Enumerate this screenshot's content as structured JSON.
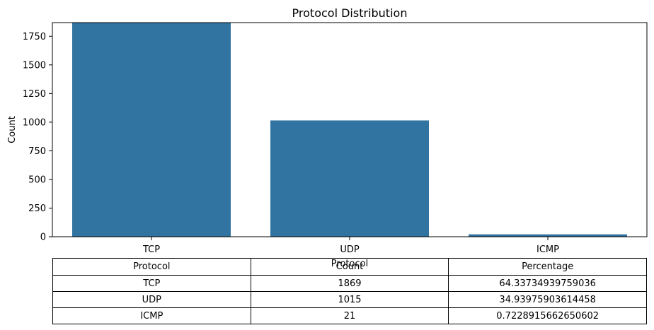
{
  "chart_data": {
    "type": "bar",
    "title": "Protocol Distribution",
    "xlabel": "Protocol",
    "ylabel": "Count",
    "categories": [
      "TCP",
      "UDP",
      "ICMP"
    ],
    "values": [
      1869,
      1015,
      21
    ],
    "ylim": [
      0,
      1869
    ],
    "yticks": [
      0,
      250,
      500,
      750,
      1000,
      1250,
      1500,
      1750
    ],
    "grid": false,
    "bar_color": "#3274a1"
  },
  "table": {
    "headers": [
      "Protocol",
      "Count",
      "Percentage"
    ],
    "rows": [
      [
        "TCP",
        "1869",
        "64.33734939759036"
      ],
      [
        "UDP",
        "1015",
        "34.93975903614458"
      ],
      [
        "ICMP",
        "21",
        "0.7228915662650602"
      ]
    ]
  }
}
